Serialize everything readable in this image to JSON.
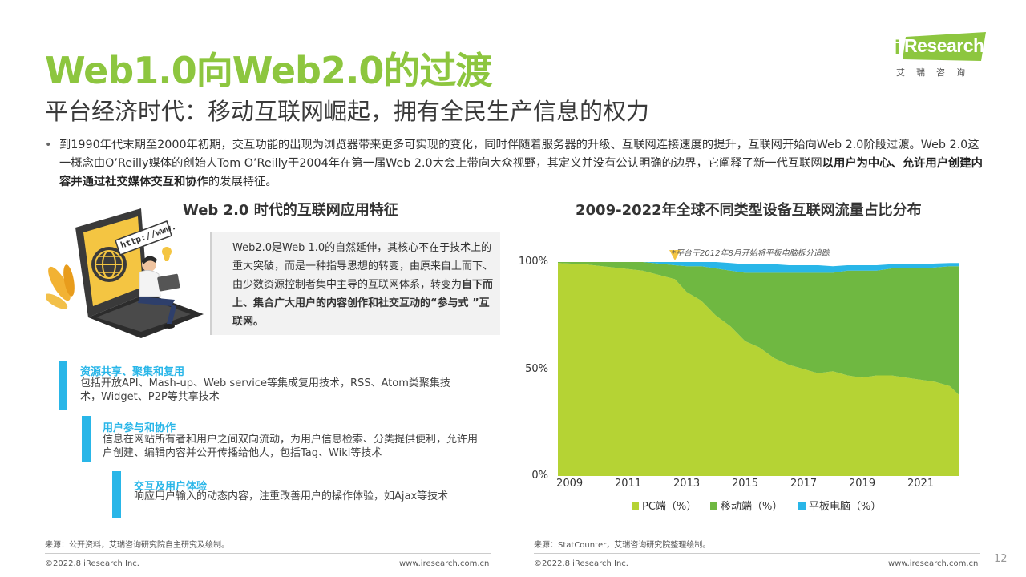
{
  "header": {
    "title": "Web1.0向Web2.0的过渡",
    "subtitle": "平台经济时代：移动互联网崛起，拥有全民生产信息的权力"
  },
  "logo": {
    "brand_i": "i",
    "brand": "Research",
    "sub": "艾瑞咨询",
    "color": "#8dc63f"
  },
  "intro": {
    "bullet": "•",
    "text_part1": "到1990年代末期至2000年初期，交互功能的出现为浏览器带来更多可实现的变化，同时伴随着服务器的升级、互联网连接速度的提升，互联网开始向Web 2.0阶段过渡。Web 2.0这一概念由O’Reilly媒体的创始人Tom O’Reilly于2004年在第一届Web 2.0大会上带向大众视野，其定义并没有公认明确的边界，它阐释了新一代互联网",
    "text_bold": "以用户为中心、允许用户创建内容并通过社交媒体交互和协作",
    "text_part2": "的发展特征。"
  },
  "left": {
    "section_title": "Web 2.0 时代的互联网应用特征",
    "illustration_text": "http://www.",
    "quote_part1": "Web2.0是Web 1.0的自然延伸，其核心不在于技术上的重大突破，而是一种指导思想的转变，由原来自上而下、由少数资源控制者集中主导的互联网体系，转变为",
    "quote_bold": "自下而上、集合广大用户的内容创作和社交互动的“参与式 ”互联网。",
    "features": [
      {
        "title": "资源共享、聚集和复用",
        "desc": "包括开放API、Mash-up、Web service等集成复用技术，RSS、Atom类聚集技术，Widget、P2P等共享技术"
      },
      {
        "title": "用户参与和协作",
        "desc": "信息在网站所有者和用户之间双向流动，为用户信息检索、分类提供便利，允许用户创建、编辑内容并公开传播给他人，包括Tag、Wiki等技术"
      },
      {
        "title": "交互及用户体验",
        "desc": "响应用户输入的动态内容，注重改善用户的操作体验，如Ajax等技术"
      }
    ],
    "source": "来源：公开资料，艾瑞咨询研究院自主研究及绘制。"
  },
  "right": {
    "section_title": "2009-2022年全球不同类型设备互联网流量占比分布",
    "source": "来源：StatCounter，艾瑞咨询研究院整理绘制。"
  },
  "chart_data": {
    "type": "area",
    "title": "2009-2022年全球不同类型设备互联网流量占比分布",
    "annotation": "*平台于2012年8月开始将平板电脑拆分追踪",
    "annotation_x": 2012.6,
    "stacked": true,
    "ylim": [
      0,
      100
    ],
    "yticks": [
      "0%",
      "50%",
      "100%"
    ],
    "ytick_values": [
      0,
      50,
      100
    ],
    "xticks": [
      "2009",
      "2011",
      "2013",
      "2015",
      "2017",
      "2019",
      "2021"
    ],
    "xtick_values": [
      2009,
      2011,
      2013,
      2015,
      2017,
      2019,
      2021
    ],
    "xlim": [
      2008.6,
      2022.3
    ],
    "x": [
      2008.6,
      2009.5,
      2010.5,
      2011.5,
      2012.6,
      2013.0,
      2013.5,
      2014.0,
      2014.5,
      2015.0,
      2015.5,
      2016.0,
      2016.5,
      2017.0,
      2017.5,
      2018.0,
      2018.5,
      2019.0,
      2019.5,
      2020.0,
      2020.5,
      2021.0,
      2021.5,
      2022.0,
      2022.3
    ],
    "series": [
      {
        "name": "PC端（%）",
        "color": "#b5d334",
        "values": [
          99.5,
          99,
          97.5,
          96,
          92,
          86,
          82,
          75,
          70,
          63,
          60,
          55,
          52,
          50,
          48,
          49,
          47,
          46,
          47,
          47,
          46,
          45,
          44,
          42,
          38
        ]
      },
      {
        "name": "移动端（%）",
        "color": "#6fb841",
        "values": [
          0.5,
          1,
          2.5,
          4,
          6.5,
          12,
          16,
          22,
          26,
          32,
          35,
          40,
          43,
          45,
          47,
          46,
          49,
          50,
          49,
          50,
          51,
          52,
          53.5,
          56,
          60
        ]
      },
      {
        "name": "平板电脑（%）",
        "color": "#29b6e8",
        "values": [
          0,
          0,
          0,
          0,
          1.5,
          2,
          2,
          3,
          3.5,
          4,
          4,
          4,
          3.5,
          3.5,
          3.5,
          3,
          2.5,
          2.5,
          2.5,
          2,
          2,
          2,
          1.8,
          1.5,
          1.5
        ]
      }
    ]
  },
  "footer": {
    "left_copy": "©2022.8 iResearch Inc.",
    "left_url": "www.iresearch.com.cn",
    "right_copy": "©2022.8 iResearch Inc.",
    "right_url": "www.iresearch.com.cn",
    "page": "12"
  }
}
